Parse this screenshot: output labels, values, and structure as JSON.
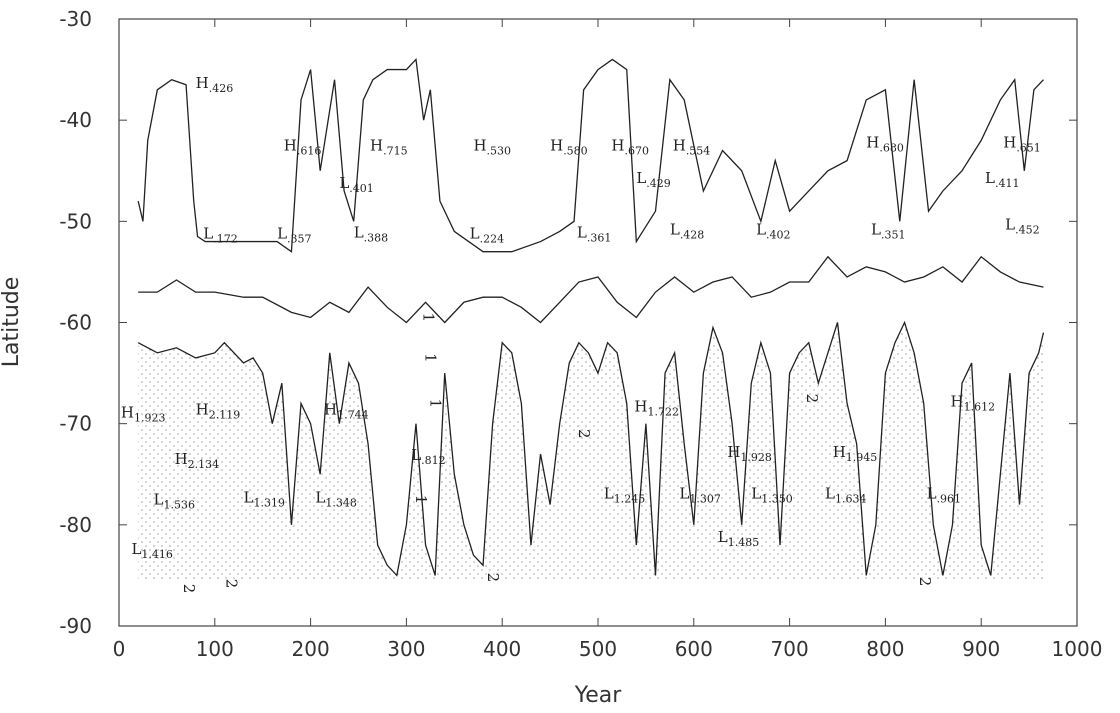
{
  "chart_data": {
    "type": "line",
    "title": "",
    "xlabel": "Year",
    "ylabel": "Latitude",
    "xlim": [
      0,
      1000
    ],
    "ylim": [
      -90,
      -30
    ],
    "xticks": [
      0,
      100,
      200,
      300,
      400,
      500,
      600,
      700,
      800,
      900,
      1000
    ],
    "yticks": [
      -30,
      -40,
      -50,
      -60,
      -70,
      -80,
      -90
    ],
    "grid": false,
    "shading": "stippled regions below the lower curve",
    "series": [
      {
        "x": [
          20,
          25,
          30,
          40,
          55,
          70,
          78,
          82,
          90,
          110,
          140,
          165,
          180,
          190,
          200,
          210,
          225,
          235,
          245,
          255,
          265,
          280,
          300,
          310,
          318,
          325,
          335,
          350,
          380,
          410,
          440,
          460,
          475,
          485,
          500,
          515,
          530,
          540,
          560,
          575,
          590,
          610,
          630,
          650,
          670,
          685,
          700,
          720,
          740,
          760,
          780,
          800,
          815,
          830,
          845,
          860,
          880,
          900,
          920,
          935,
          945,
          955,
          965
        ],
        "values": [
          -48,
          -50,
          -42,
          -37,
          -36,
          -36.5,
          -48,
          -51.5,
          -52,
          -52,
          -52,
          -52,
          -53,
          -38,
          -35,
          -45,
          -36,
          -47,
          -50,
          -38,
          -36,
          -35,
          -35,
          -34,
          -40,
          -37,
          -48,
          -51,
          -53,
          -53,
          -52,
          -51,
          -50,
          -37,
          -35,
          -34,
          -35,
          -52,
          -49,
          -36,
          -38,
          -47,
          -43,
          -45,
          -50,
          -44,
          -49,
          -47,
          -45,
          -44,
          -38,
          -37,
          -50,
          -36,
          -49,
          -47,
          -45,
          -42,
          -38,
          -36,
          -45,
          -37,
          -36
        ]
      },
      {
        "x": [
          20,
          40,
          60,
          80,
          100,
          130,
          150,
          180,
          200,
          220,
          240,
          260,
          280,
          300,
          320,
          340,
          360,
          380,
          400,
          420,
          440,
          460,
          480,
          500,
          520,
          540,
          560,
          580,
          600,
          620,
          640,
          660,
          680,
          700,
          720,
          740,
          760,
          780,
          800,
          820,
          840,
          860,
          880,
          900,
          920,
          940,
          965
        ],
        "values": [
          -57,
          -57,
          -55.8,
          -57,
          -57,
          -57.5,
          -57.5,
          -59,
          -59.5,
          -58,
          -59,
          -56.5,
          -58.5,
          -60,
          -58,
          -60,
          -58,
          -57.5,
          -57.5,
          -58.5,
          -60,
          -58,
          -56,
          -55.5,
          -58,
          -59.5,
          -57,
          -55.5,
          -57,
          -56,
          -55.5,
          -57.5,
          -57,
          -56,
          -56,
          -53.5,
          -55.5,
          -54.5,
          -55,
          -56,
          -55.5,
          -54.5,
          -56,
          -53.5,
          -55,
          -56,
          -56.5
        ]
      },
      {
        "x": [
          20,
          40,
          60,
          80,
          100,
          110,
          120,
          130,
          140,
          150,
          160,
          170,
          180,
          190,
          200,
          210,
          220,
          230,
          240,
          250,
          260,
          270,
          280,
          290,
          300,
          310,
          320,
          330,
          340,
          350,
          360,
          370,
          380,
          390,
          400,
          410,
          420,
          430,
          440,
          450,
          460,
          470,
          480,
          490,
          500,
          510,
          520,
          530,
          540,
          550,
          560,
          570,
          580,
          590,
          600,
          610,
          620,
          630,
          640,
          650,
          660,
          670,
          680,
          690,
          700,
          710,
          720,
          730,
          740,
          750,
          760,
          770,
          780,
          790,
          800,
          810,
          820,
          830,
          840,
          850,
          860,
          870,
          880,
          890,
          900,
          910,
          920,
          930,
          940,
          950,
          960,
          965
        ],
        "values": [
          -62,
          -63,
          -62.5,
          -63.5,
          -63,
          -62,
          -63,
          -64,
          -63.5,
          -65,
          -70,
          -66,
          -80,
          -68,
          -70,
          -75,
          -63,
          -70,
          -64,
          -66,
          -72,
          -82,
          -84,
          -85,
          -80,
          -70,
          -82,
          -85,
          -65,
          -75,
          -80,
          -83,
          -84,
          -70,
          -62,
          -63,
          -68,
          -82,
          -73,
          -78,
          -70,
          -64,
          -62,
          -63,
          -65,
          -62,
          -63,
          -68,
          -82,
          -70,
          -85,
          -65,
          -63,
          -72,
          -80,
          -65,
          -60.5,
          -63,
          -70,
          -80,
          -66,
          -62,
          -65,
          -82,
          -65,
          -63,
          -62,
          -66,
          -63,
          -60,
          -68,
          -72,
          -85,
          -80,
          -65,
          -62,
          -60,
          -63,
          -68,
          -80,
          -85,
          -80,
          -66,
          -64,
          -82,
          -85,
          -75,
          -65,
          -78,
          -65,
          -63,
          -61
        ]
      }
    ],
    "annotations": [
      {
        "main": "H",
        "sub": ".426",
        "x": 80,
        "y": -36.8
      },
      {
        "main": "H",
        "sub": ".616",
        "x": 172,
        "y": -43
      },
      {
        "main": "H",
        "sub": ".715",
        "x": 262,
        "y": -43
      },
      {
        "main": "L",
        "sub": ".401",
        "x": 230,
        "y": -46.7
      },
      {
        "main": "L",
        "sub": ".172",
        "x": 88,
        "y": -51.7
      },
      {
        "main": "L",
        "sub": ".357",
        "x": 165,
        "y": -51.7
      },
      {
        "main": "L",
        "sub": ".388",
        "x": 245,
        "y": -51.6
      },
      {
        "main": "H",
        "sub": ".530",
        "x": 370,
        "y": -43
      },
      {
        "main": "H",
        "sub": ".580",
        "x": 450,
        "y": -43
      },
      {
        "main": "H",
        "sub": ".670",
        "x": 514,
        "y": -43
      },
      {
        "main": "H",
        "sub": ".554",
        "x": 578,
        "y": -43
      },
      {
        "main": "L",
        "sub": ".429",
        "x": 540,
        "y": -46.2
      },
      {
        "main": "L",
        "sub": ".224",
        "x": 366,
        "y": -51.7
      },
      {
        "main": "L",
        "sub": ".361",
        "x": 478,
        "y": -51.6
      },
      {
        "main": "L",
        "sub": ".428",
        "x": 575,
        "y": -51.3
      },
      {
        "main": "L",
        "sub": ".402",
        "x": 665,
        "y": -51.3
      },
      {
        "main": "H",
        "sub": ".680",
        "x": 780,
        "y": -42.7
      },
      {
        "main": "H",
        "sub": ".651",
        "x": 923,
        "y": -42.7
      },
      {
        "main": "L",
        "sub": ".411",
        "x": 904,
        "y": -46.2
      },
      {
        "main": "L",
        "sub": ".351",
        "x": 785,
        "y": -51.3
      },
      {
        "main": "L",
        "sub": ".452",
        "x": 925,
        "y": -50.8
      },
      {
        "main": "H",
        "sub": "1.923",
        "x": 2,
        "y": -69.4
      },
      {
        "main": "H",
        "sub": "2.119",
        "x": 80,
        "y": -69.1
      },
      {
        "main": "H",
        "sub": "1.744",
        "x": 214,
        "y": -69.1
      },
      {
        "main": "H",
        "sub": "2.134",
        "x": 58,
        "y": -74
      },
      {
        "main": "L",
        "sub": "1.536",
        "x": 36,
        "y": -78
      },
      {
        "main": "L",
        "sub": "1.319",
        "x": 130,
        "y": -77.8
      },
      {
        "main": "L",
        "sub": "1.348",
        "x": 205,
        "y": -77.8
      },
      {
        "main": "L",
        "sub": "1.416",
        "x": 13,
        "y": -82.9
      },
      {
        "main": "L",
        "sub": ".812",
        "x": 305,
        "y": -73.6
      },
      {
        "main": "H",
        "sub": "1.722",
        "x": 538,
        "y": -68.8
      },
      {
        "main": "L",
        "sub": "1.245",
        "x": 506,
        "y": -77.4
      },
      {
        "main": "L",
        "sub": "1.307",
        "x": 585,
        "y": -77.4
      },
      {
        "main": "H",
        "sub": "1.928",
        "x": 635,
        "y": -73.3
      },
      {
        "main": "L",
        "sub": "1.350",
        "x": 660,
        "y": -77.4
      },
      {
        "main": "L",
        "sub": "1.485",
        "x": 625,
        "y": -81.7
      },
      {
        "main": "H",
        "sub": "1.945",
        "x": 745,
        "y": -73.3
      },
      {
        "main": "L",
        "sub": "1.634",
        "x": 737,
        "y": -77.4
      },
      {
        "main": "L",
        "sub": ".961",
        "x": 843,
        "y": -77.4
      },
      {
        "main": "H",
        "sub": "1.612",
        "x": 868,
        "y": -68.3
      }
    ],
    "contour_labels": [
      {
        "text": "1",
        "x": 318,
        "y": -59.5
      },
      {
        "text": "1",
        "x": 320,
        "y": -63.5
      },
      {
        "text": "1",
        "x": 325,
        "y": -68
      },
      {
        "text": "1",
        "x": 310,
        "y": -77.5
      },
      {
        "text": "2",
        "x": 480,
        "y": -71
      },
      {
        "text": "2",
        "x": 718,
        "y": -67.5
      },
      {
        "text": "2",
        "x": 385,
        "y": -85.2
      },
      {
        "text": "2",
        "x": 68,
        "y": -86.3
      },
      {
        "text": "2",
        "x": 112,
        "y": -85.8
      },
      {
        "text": "2",
        "x": 836,
        "y": -85.6
      }
    ]
  }
}
